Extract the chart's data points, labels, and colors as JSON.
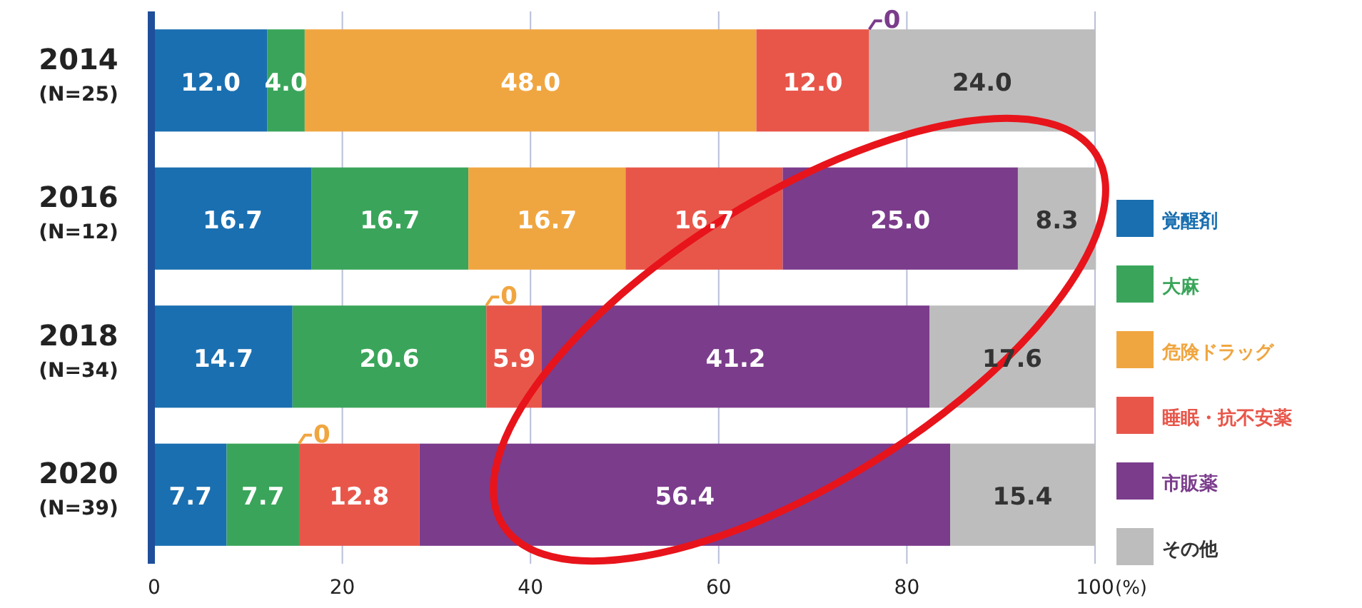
{
  "chart_data": {
    "type": "bar",
    "orientation": "horizontal",
    "stacked": true,
    "xlabel": "(%)",
    "categories": [
      "2014\n(N=25)",
      "2016\n(N=12)",
      "2018\n(N=34)",
      "2020\n(N=39)"
    ],
    "series": [
      {
        "name": "覚醒剤",
        "color": "#1a6fb0",
        "values": [
          12.0,
          16.7,
          14.7,
          7.7
        ],
        "value_labels": [
          "12.0",
          "16.7",
          "14.7",
          "7.7"
        ]
      },
      {
        "name": "大麻",
        "color": "#3aa55a",
        "values": [
          4.0,
          16.7,
          20.6,
          7.7
        ],
        "value_labels": [
          "4.0",
          "16.7",
          "20.6",
          "7.7"
        ]
      },
      {
        "name": "危険ドラッグ",
        "color": "#f0a640",
        "values": [
          48.0,
          16.7,
          0,
          0
        ],
        "value_labels": [
          "48.0",
          "16.7",
          null,
          null
        ]
      },
      {
        "name": "睡眠・抗不安薬",
        "color": "#e8564a",
        "values": [
          12.0,
          16.7,
          5.9,
          12.8
        ],
        "value_labels": [
          "12.0",
          "16.7",
          "5.9",
          "12.8"
        ]
      },
      {
        "name": "市販薬",
        "color": "#7b3c8c",
        "values": [
          0,
          25.0,
          41.2,
          56.4
        ],
        "value_labels": [
          null,
          "25.0",
          "41.2",
          "56.4"
        ]
      },
      {
        "name": "その他",
        "color": "#bdbdbd",
        "values": [
          24.0,
          8.3,
          17.6,
          15.4
        ],
        "value_labels": [
          "24.0",
          "8.3",
          "17.6",
          "15.4"
        ]
      }
    ],
    "annotations": [
      {
        "text": "0",
        "x": 76.0,
        "y": "2014\n(N=25)"
      },
      {
        "text": "0",
        "x": 35.3,
        "y": "2018\n(N=34)"
      },
      {
        "text": "0",
        "x": 15.4,
        "y": "2020\n(N=39)"
      }
    ],
    "xlim": [
      0,
      100
    ],
    "xticks": [
      0,
      20,
      40,
      60,
      80,
      100
    ],
    "grid": "x",
    "legend": "right"
  }
}
